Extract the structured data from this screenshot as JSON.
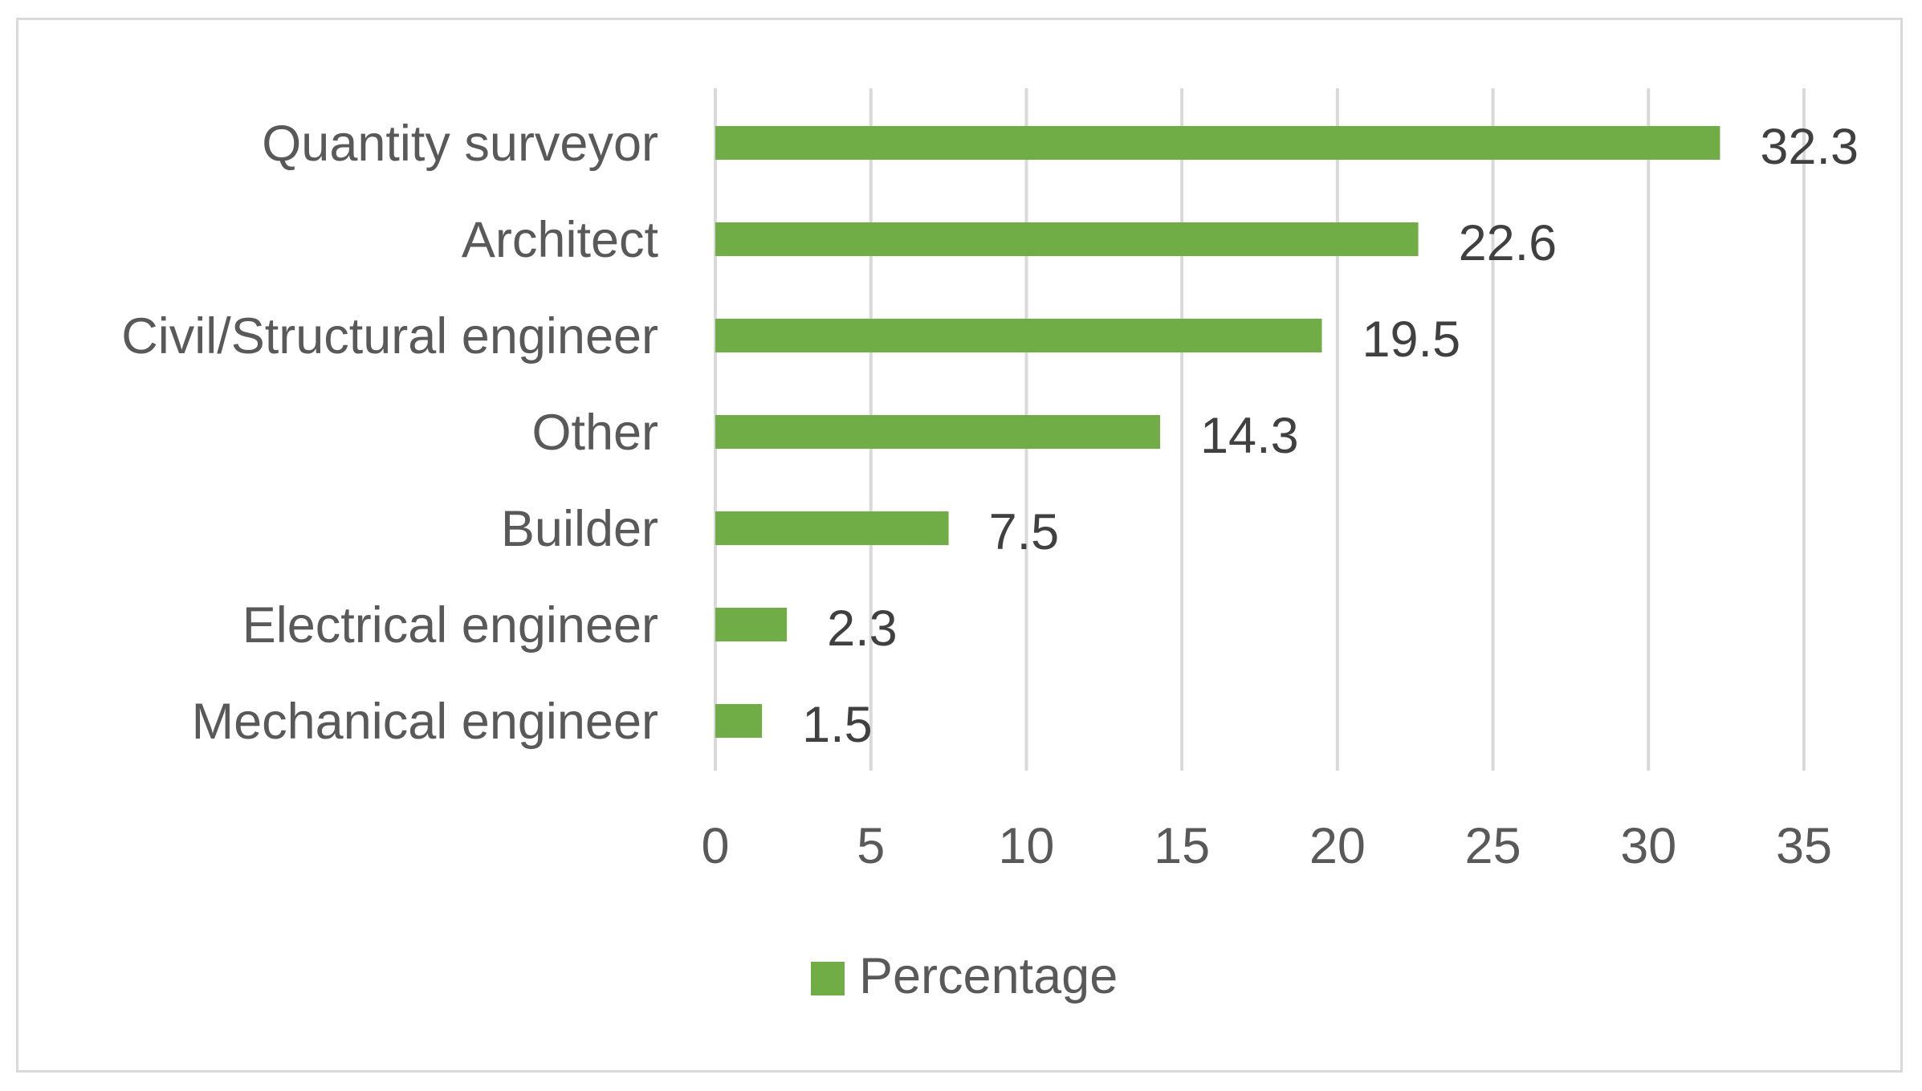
{
  "chart_data": {
    "type": "bar",
    "orientation": "horizontal",
    "title": "",
    "xlabel": "",
    "ylabel": "",
    "categories": [
      "Quantity surveyor",
      "Architect",
      "Civil/Structural engineer",
      "Other",
      "Builder",
      "Electrical engineer",
      "Mechanical engineer"
    ],
    "series": [
      {
        "name": "Percentage",
        "values": [
          32.3,
          22.6,
          19.5,
          14.3,
          7.5,
          2.3,
          1.5
        ],
        "value_labels": [
          "32.3",
          "22.6",
          "19.5",
          "14.3",
          "7.5",
          "2.3",
          "1.5"
        ],
        "color": "#70ad47"
      }
    ],
    "xlim": [
      0,
      35
    ],
    "xticks": [
      0,
      5,
      10,
      15,
      20,
      25,
      30,
      35
    ],
    "xtick_labels": [
      "0",
      "5",
      "10",
      "15",
      "20",
      "25",
      "30",
      "35"
    ],
    "grid": true,
    "gridline_color": "#d9d9d9",
    "legend": {
      "position": "bottom",
      "entries": [
        "Percentage"
      ]
    }
  }
}
